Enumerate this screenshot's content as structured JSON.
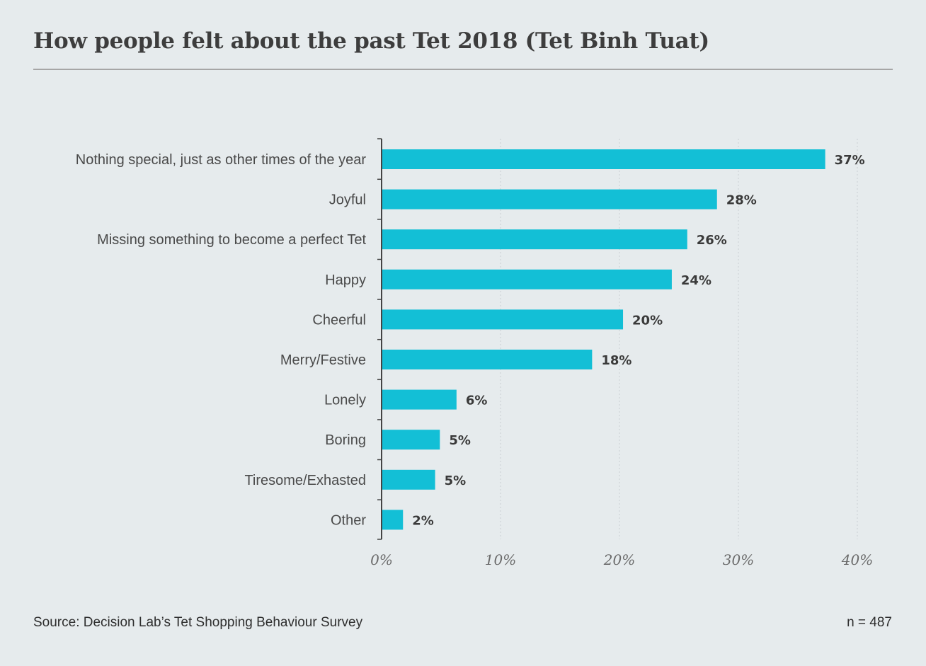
{
  "header": {
    "title": "How people felt about the past Tet 2018 (Tet Binh Tuat)"
  },
  "footer": {
    "source": "Source: Decision Lab’s Tet Shopping Behaviour Survey",
    "sample_size": "n = 487"
  },
  "colors": {
    "bar": "#13bfd6",
    "background": "#e6ebed",
    "axis": "#444444",
    "grid": "#c9cfd2",
    "label_text": "#4a4a4a",
    "value_text": "#3a3a3a",
    "tick_text": "#6b6b6b"
  },
  "chart_data": {
    "type": "bar",
    "orientation": "horizontal",
    "title": "How people felt about the past Tet 2018 (Tet Binh Tuat)",
    "categories": [
      "Nothing special, just as other times of the year",
      "Joyful",
      "Missing something to become a perfect Tet",
      "Happy",
      "Cheerful",
      "Merry/Festive",
      "Lonely",
      "Boring",
      "Tiresome/Exhasted",
      "Other"
    ],
    "values": [
      37.3,
      28.2,
      25.7,
      24.4,
      20.3,
      17.7,
      6.3,
      4.9,
      4.5,
      1.8
    ],
    "value_labels": [
      "37%",
      "28%",
      "26%",
      "24%",
      "20%",
      "18%",
      "6%",
      "5%",
      "5%",
      "2%"
    ],
    "xlim": [
      0,
      40
    ],
    "xticks": [
      0,
      10,
      20,
      30,
      40
    ],
    "xtick_labels": [
      "0%",
      "10%",
      "20%",
      "30%",
      "40%"
    ],
    "xlabel": "",
    "ylabel": "",
    "grid": "vertical dotted",
    "legend": "none"
  }
}
